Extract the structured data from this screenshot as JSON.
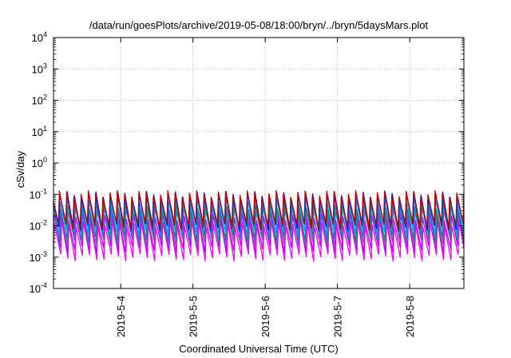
{
  "chart_data": {
    "type": "line",
    "title": "/data/run/goesPlots/archive/2019-05-08/18:00/bryn/../bryn/5daysMars.plot",
    "xlabel": "Coordinated Universal Time (UTC)",
    "ylabel": "cSv/day",
    "yscale": "log",
    "ylim": [
      0.0001,
      10000
    ],
    "xlim": [
      "2019-05-03T01:40",
      "2019-05-08T18:00"
    ],
    "grid": true,
    "x_ticks": [
      {
        "label": "2019-5-4",
        "date": "2019-05-04T00:00"
      },
      {
        "label": "2019-5-5",
        "date": "2019-05-05T00:00"
      },
      {
        "label": "2019-5-6",
        "date": "2019-05-06T00:00"
      },
      {
        "label": "2019-5-7",
        "date": "2019-05-07T00:00"
      },
      {
        "label": "2019-5-8",
        "date": "2019-05-08T00:00"
      }
    ],
    "y_ticks": [
      {
        "base": "10",
        "exp": "-4",
        "value": 0.0001
      },
      {
        "base": "10",
        "exp": "-3",
        "value": 0.001
      },
      {
        "base": "10",
        "exp": "-2",
        "value": 0.01
      },
      {
        "base": "10",
        "exp": "-1",
        "value": 0.1
      },
      {
        "base": "10",
        "exp": "0",
        "value": 1
      },
      {
        "base": "10",
        "exp": "1",
        "value": 10
      },
      {
        "base": "10",
        "exp": "2",
        "value": 100
      },
      {
        "base": "10",
        "exp": "3",
        "value": 1000
      },
      {
        "base": "10",
        "exp": "4",
        "value": 10000
      }
    ],
    "cycle_period_hours": 2.4,
    "series": [
      {
        "color": "#ff00ff",
        "peak": 0.012,
        "trough": 0.001
      },
      {
        "color": "#c000ff",
        "peak": 0.02,
        "trough": 0.0018
      },
      {
        "color": "#7070a0",
        "peak": 0.035,
        "trough": 0.003
      },
      {
        "color": "#008b8b",
        "peak": 0.045,
        "trough": 0.004
      },
      {
        "color": "#00a0ff",
        "peak": 0.07,
        "trough": 0.006
      },
      {
        "color": "#1010c0",
        "peak": 0.1,
        "trough": 0.009
      },
      {
        "color": "#c00000",
        "peak": 0.105,
        "trough": 0.01
      }
    ]
  }
}
